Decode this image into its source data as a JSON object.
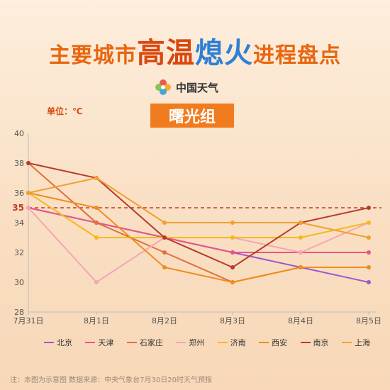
{
  "header": {
    "title_part1": "主要城市",
    "title_part2": "高温",
    "title_part3": "熄火",
    "title_part4": "进程盘点",
    "brand_name": "中国天气",
    "unit_label": "单位：℃",
    "group_label": "曙光组"
  },
  "chart_data": {
    "type": "line",
    "categories": [
      "7月31日",
      "8月1日",
      "8月2日",
      "8月3日",
      "8月4日",
      "8月5日"
    ],
    "ylim": [
      28,
      40
    ],
    "yticks": [
      28,
      30,
      32,
      34,
      36,
      38,
      40
    ],
    "highlight_tick": 35,
    "reference_line": {
      "value": 35,
      "color": "#c0392b"
    },
    "grid": false,
    "legend_position": "bottom",
    "series": [
      {
        "name": "北京",
        "color": "#9b59c9",
        "values": [
          35,
          34,
          33,
          32,
          31,
          30
        ]
      },
      {
        "name": "天津",
        "color": "#e8558a",
        "values": [
          35,
          34,
          33,
          32,
          32,
          32
        ]
      },
      {
        "name": "石家庄",
        "color": "#e0703a",
        "values": [
          38,
          34,
          32,
          30,
          31,
          31
        ]
      },
      {
        "name": "郑州",
        "color": "#f2a7b5",
        "values": [
          35,
          30,
          33,
          33,
          32,
          34
        ]
      },
      {
        "name": "济南",
        "color": "#f5b91e",
        "values": [
          36,
          33,
          33,
          33,
          33,
          34
        ]
      },
      {
        "name": "西安",
        "color": "#f28c1c",
        "values": [
          36,
          35,
          31,
          30,
          31,
          31
        ]
      },
      {
        "name": "南京",
        "color": "#b83a2e",
        "values": [
          38,
          37,
          33,
          31,
          34,
          35
        ]
      },
      {
        "name": "上海",
        "color": "#f0a030",
        "values": [
          36,
          37,
          34,
          34,
          34,
          33
        ]
      }
    ]
  },
  "footnote": "注：本图为示意图  数据来源：中央气象台7月30日20时天气预报"
}
